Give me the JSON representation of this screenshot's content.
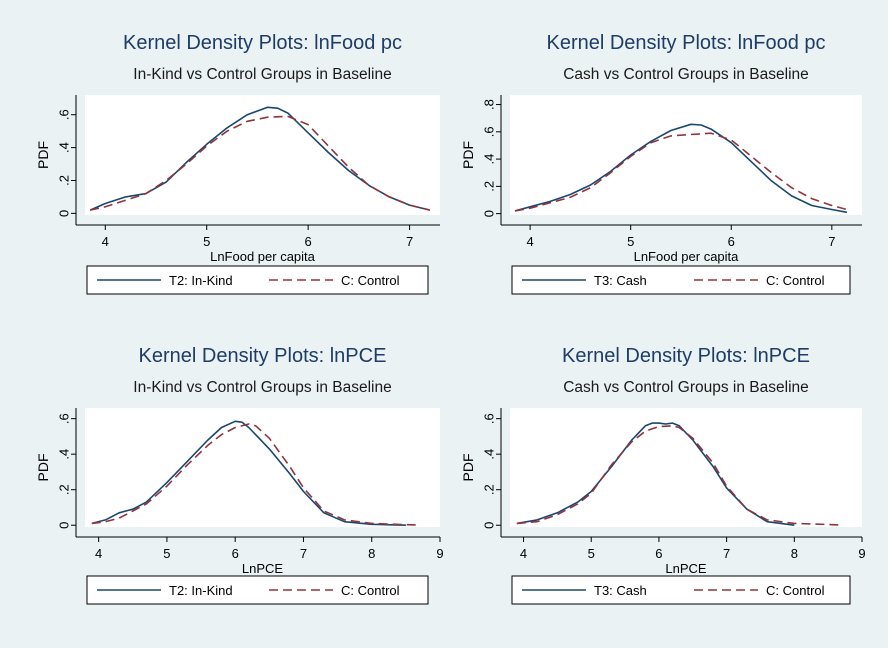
{
  "figure": {
    "background": "#eaf2f3"
  },
  "chart_data": [
    {
      "type": "line",
      "title": "Kernel Density Plots: lnFood pc",
      "subtitle": "In-Kind vs Control Groups in Baseline",
      "xlabel": "LnFood per capita",
      "ylabel": "PDF",
      "xlim": [
        3.8,
        7.3
      ],
      "ylim": [
        -0.01,
        0.72
      ],
      "xticks": [
        4,
        5,
        6,
        7
      ],
      "xtick_labels": [
        "4",
        "5",
        "6",
        "7"
      ],
      "yticks": [
        0,
        0.2,
        0.4,
        0.6
      ],
      "ytick_labels": [
        "0",
        ".2",
        ".4",
        ".6"
      ],
      "legend_position": "bottom",
      "series": [
        {
          "name": "T2: In-Kind",
          "color": "#1a476f",
          "dash": "solid",
          "x": [
            3.85,
            4.0,
            4.2,
            4.4,
            4.6,
            4.8,
            5.0,
            5.2,
            5.4,
            5.6,
            5.7,
            5.8,
            6.0,
            6.2,
            6.4,
            6.6,
            6.8,
            7.0,
            7.2
          ],
          "y": [
            0.02,
            0.06,
            0.1,
            0.12,
            0.19,
            0.31,
            0.42,
            0.52,
            0.6,
            0.645,
            0.64,
            0.61,
            0.49,
            0.37,
            0.26,
            0.17,
            0.1,
            0.05,
            0.02
          ]
        },
        {
          "name": "C: Control",
          "color": "#90353b",
          "dash": "dashed",
          "x": [
            3.85,
            4.0,
            4.2,
            4.4,
            4.6,
            4.8,
            5.0,
            5.2,
            5.4,
            5.6,
            5.8,
            6.0,
            6.2,
            6.4,
            6.6,
            6.8,
            7.0,
            7.2
          ],
          "y": [
            0.02,
            0.04,
            0.08,
            0.12,
            0.2,
            0.3,
            0.41,
            0.5,
            0.56,
            0.585,
            0.59,
            0.54,
            0.41,
            0.28,
            0.17,
            0.1,
            0.05,
            0.02
          ]
        }
      ]
    },
    {
      "type": "line",
      "title": "Kernel Density Plots: lnFood pc",
      "subtitle": "Cash vs Control Groups in Baseline",
      "xlabel": "LnFood per capita",
      "ylabel": "PDF",
      "xlim": [
        3.8,
        7.3
      ],
      "ylim": [
        -0.01,
        0.87
      ],
      "xticks": [
        4,
        5,
        6,
        7
      ],
      "xtick_labels": [
        "4",
        "5",
        "6",
        "7"
      ],
      "yticks": [
        0,
        0.2,
        0.4,
        0.6,
        0.8
      ],
      "ytick_labels": [
        "0",
        ".2",
        ".4",
        ".6",
        ".8"
      ],
      "legend_position": "bottom",
      "series": [
        {
          "name": "T3: Cash",
          "color": "#1a476f",
          "dash": "solid",
          "x": [
            3.85,
            4.0,
            4.2,
            4.4,
            4.6,
            4.8,
            5.0,
            5.2,
            5.4,
            5.6,
            5.7,
            5.8,
            6.0,
            6.2,
            6.4,
            6.6,
            6.8,
            7.0,
            7.15
          ],
          "y": [
            0.02,
            0.05,
            0.09,
            0.14,
            0.21,
            0.31,
            0.43,
            0.53,
            0.61,
            0.655,
            0.65,
            0.62,
            0.52,
            0.38,
            0.24,
            0.13,
            0.06,
            0.03,
            0.01
          ]
        },
        {
          "name": "C: Control",
          "color": "#90353b",
          "dash": "dashed",
          "x": [
            3.85,
            4.0,
            4.2,
            4.4,
            4.6,
            4.8,
            5.0,
            5.2,
            5.4,
            5.6,
            5.8,
            6.0,
            6.2,
            6.4,
            6.6,
            6.8,
            7.0,
            7.15
          ],
          "y": [
            0.02,
            0.04,
            0.08,
            0.12,
            0.19,
            0.3,
            0.42,
            0.52,
            0.57,
            0.58,
            0.59,
            0.54,
            0.42,
            0.3,
            0.19,
            0.11,
            0.06,
            0.03
          ]
        }
      ]
    },
    {
      "type": "line",
      "title": "Kernel Density Plots: lnPCE",
      "subtitle": "In-Kind vs Control Groups in Baseline",
      "xlabel": "LnPCE",
      "ylabel": "PDF",
      "xlim": [
        3.8,
        9.0
      ],
      "ylim": [
        -0.01,
        0.66
      ],
      "xticks": [
        4,
        5,
        6,
        7,
        8,
        9
      ],
      "xtick_labels": [
        "4",
        "5",
        "6",
        "7",
        "8",
        "9"
      ],
      "yticks": [
        0,
        0.2,
        0.4,
        0.6
      ],
      "ytick_labels": [
        "0",
        ".2",
        ".4",
        ".6"
      ],
      "legend_position": "bottom",
      "series": [
        {
          "name": "T2: In-Kind",
          "color": "#1a476f",
          "dash": "solid",
          "x": [
            3.9,
            4.1,
            4.3,
            4.5,
            4.7,
            5.0,
            5.3,
            5.6,
            5.8,
            6.0,
            6.1,
            6.2,
            6.5,
            6.8,
            7.0,
            7.3,
            7.6,
            8.0,
            8.5
          ],
          "y": [
            0.01,
            0.03,
            0.07,
            0.09,
            0.13,
            0.24,
            0.36,
            0.48,
            0.55,
            0.585,
            0.58,
            0.55,
            0.43,
            0.29,
            0.19,
            0.07,
            0.02,
            0.005,
            0.0
          ]
        },
        {
          "name": "C: Control",
          "color": "#90353b",
          "dash": "dashed",
          "x": [
            3.9,
            4.1,
            4.3,
            4.5,
            4.7,
            5.0,
            5.3,
            5.6,
            5.8,
            6.0,
            6.2,
            6.3,
            6.5,
            6.8,
            7.0,
            7.3,
            7.6,
            8.0,
            8.5,
            8.65
          ],
          "y": [
            0.01,
            0.02,
            0.04,
            0.08,
            0.12,
            0.22,
            0.34,
            0.45,
            0.51,
            0.55,
            0.57,
            0.56,
            0.49,
            0.33,
            0.21,
            0.08,
            0.03,
            0.01,
            0.003,
            0.002
          ]
        }
      ]
    },
    {
      "type": "line",
      "title": "Kernel Density Plots: lnPCE",
      "subtitle": "Cash vs Control Groups in Baseline",
      "xlabel": "LnPCE",
      "ylabel": "PDF",
      "xlim": [
        3.8,
        9.0
      ],
      "ylim": [
        -0.01,
        0.66
      ],
      "xticks": [
        4,
        5,
        6,
        7,
        8,
        9
      ],
      "xtick_labels": [
        "4",
        "5",
        "6",
        "7",
        "8",
        "9"
      ],
      "yticks": [
        0,
        0.2,
        0.4,
        0.6
      ],
      "ytick_labels": [
        "0",
        ".2",
        ".4",
        ".6"
      ],
      "legend_position": "bottom",
      "series": [
        {
          "name": "T3: Cash",
          "color": "#1a476f",
          "dash": "solid",
          "x": [
            3.9,
            4.2,
            4.5,
            4.8,
            5.0,
            5.3,
            5.6,
            5.8,
            5.9,
            6.0,
            6.1,
            6.2,
            6.3,
            6.5,
            6.8,
            7.0,
            7.3,
            7.6,
            8.0
          ],
          "y": [
            0.01,
            0.03,
            0.07,
            0.13,
            0.19,
            0.33,
            0.48,
            0.56,
            0.575,
            0.575,
            0.57,
            0.575,
            0.56,
            0.48,
            0.33,
            0.21,
            0.09,
            0.02,
            0.0
          ]
        },
        {
          "name": "C: Control",
          "color": "#90353b",
          "dash": "dashed",
          "x": [
            3.9,
            4.2,
            4.5,
            4.8,
            5.0,
            5.3,
            5.6,
            5.8,
            6.0,
            6.2,
            6.3,
            6.5,
            6.8,
            7.0,
            7.3,
            7.6,
            8.0,
            8.5,
            8.65
          ],
          "y": [
            0.01,
            0.02,
            0.06,
            0.12,
            0.18,
            0.34,
            0.47,
            0.53,
            0.555,
            0.56,
            0.55,
            0.49,
            0.35,
            0.22,
            0.09,
            0.03,
            0.01,
            0.004,
            0.002
          ]
        }
      ]
    }
  ]
}
